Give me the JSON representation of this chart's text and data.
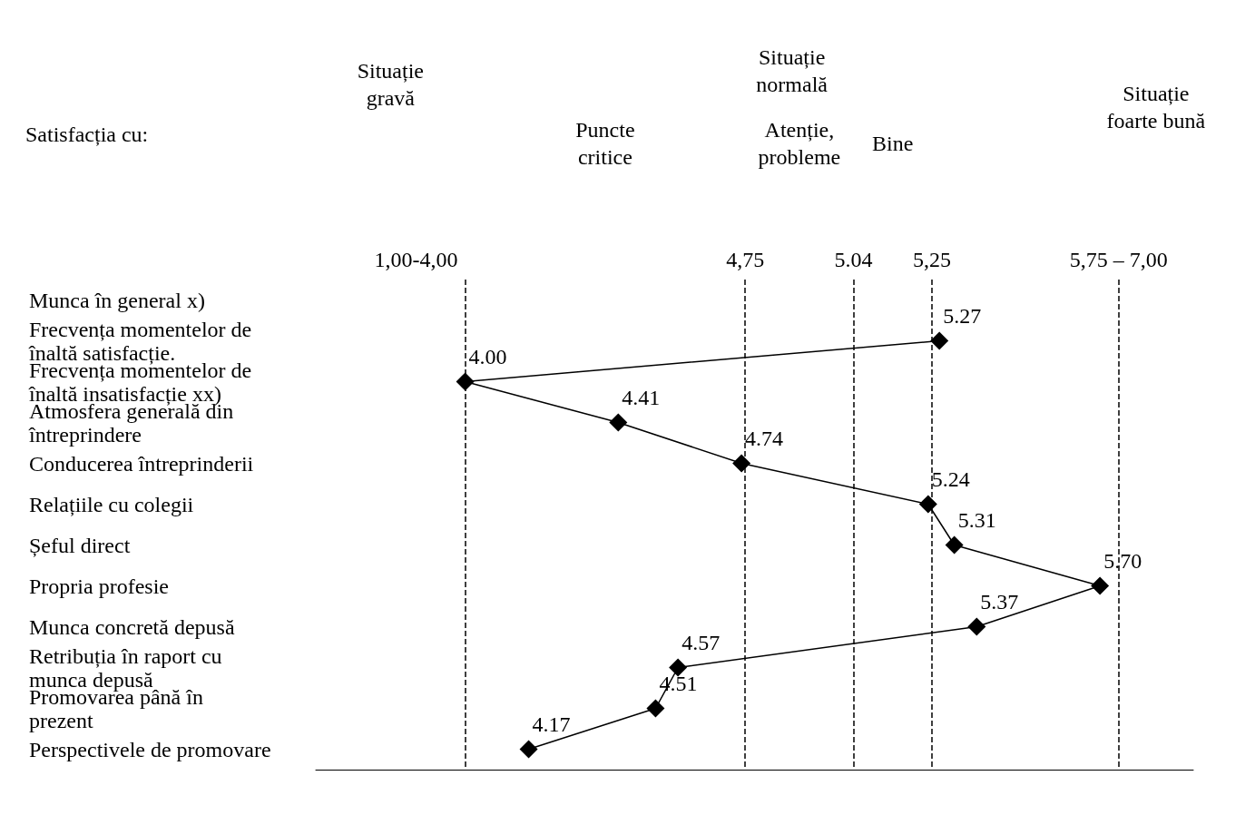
{
  "chart_data": {
    "type": "line",
    "orientation": "horizontal",
    "categories": [
      "Munca în general x)",
      "Frecvența momentelor de înaltă satisfacție.",
      "Frecvența momentelor de înaltă insatisfacție xx)",
      "Atmosfera generală din întreprindere",
      "Conducerea întreprinderii",
      "Relațiile cu colegii",
      "Șeful direct",
      "Propria profesie",
      "Munca concretă depusă",
      "Retribuția în raport cu munca depusă",
      "Promovarea până în prezent",
      "Perspectivele de promovare"
    ],
    "series": [
      {
        "color": "#000000",
        "values": [
          null,
          5.27,
          4.0,
          4.41,
          4.74,
          5.24,
          5.31,
          5.7,
          5.37,
          4.57,
          4.51,
          4.17
        ],
        "value_labels": [
          null,
          "5.27",
          "4.00",
          "4.41",
          "4.74",
          "5.24",
          "5.31",
          "5.70",
          "5.37",
          "4.57",
          "4.51",
          "4.17"
        ]
      }
    ],
    "xlim": [
      3.6,
      5.95
    ],
    "tick_labels": "y",
    "marker": "diamond",
    "line_style": "solid",
    "ref_lines": [
      {
        "axis": "x",
        "value": 4.0,
        "label": null,
        "line_style": "dashed"
      },
      {
        "axis": "x",
        "value": 4.75,
        "label": "4,75",
        "line_style": "dashed"
      },
      {
        "axis": "x",
        "value": 5.04,
        "label": "5.04",
        "line_style": "dashed"
      },
      {
        "axis": "x",
        "value": 5.25,
        "label": "5,25",
        "line_style": "dashed"
      },
      {
        "axis": "x",
        "value": 5.75,
        "label": null,
        "line_style": "dashed"
      }
    ],
    "annotations": [
      "Satisfacția cu:",
      "Situație gravă",
      "Situație normală",
      "Puncte critice",
      "Atenție, probleme",
      "Bine",
      "Situație foarte bună",
      "1,00-4,00",
      "5,75 – 7,00"
    ]
  }
}
